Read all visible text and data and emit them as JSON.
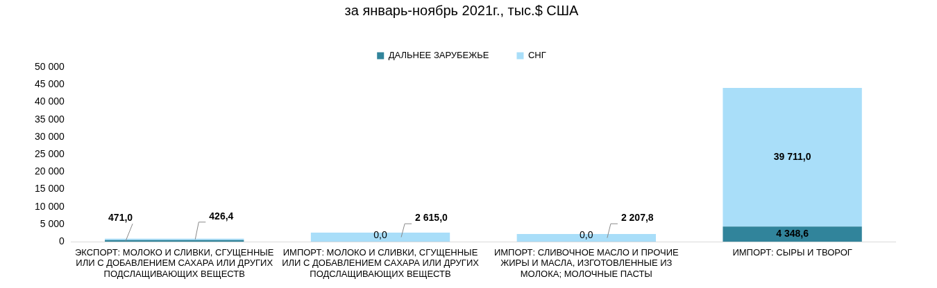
{
  "chart_data": {
    "type": "bar",
    "title": "за январь-ноябрь 2021г., тыс.$ США",
    "categories": [
      "ЭКСПОРТ: МОЛОКО И СЛИВКИ, СГУЩЕННЫЕ ИЛИ С ДОБАВЛЕНИЕМ САХАРА ИЛИ ДРУГИХ ПОДСЛАЩИВАЮЩИХ ВЕЩЕСТВ",
      "ИМПОРТ: МОЛОКО И СЛИВКИ, СГУЩЕННЫЕ ИЛИ С ДОБАВЛЕНИЕМ САХАРА ИЛИ ДРУГИХ ПОДСЛАЩИВАЮЩИХ ВЕЩЕСТВ",
      "ИМПОРТ: СЛИВОЧНОЕ МАСЛО И ПРОЧИЕ ЖИРЫ И МАСЛА, ИЗГОТОВЛЕННЫЕ ИЗ МОЛОКА; МОЛОЧНЫЕ ПАСТЫ",
      "ИМПОРТ: СЫРЫ И ТВОРОГ"
    ],
    "stacked": true,
    "series": [
      {
        "name": "ДАЛЬНЕЕ ЗАРУБЕЖЬЕ",
        "color": "#31849b",
        "values": [
          471.0,
          0.0,
          0.0,
          4348.6
        ],
        "value_labels": [
          "471,0",
          "0,0",
          "0,0",
          "4 348,6"
        ]
      },
      {
        "name": "СНГ",
        "color": "#a9def9",
        "values": [
          426.4,
          2615.0,
          2207.8,
          39711.0
        ],
        "value_labels": [
          "426,4",
          "2 615,0",
          "2 207,8",
          "39 711,0"
        ]
      }
    ],
    "ylim": [
      0,
      50000
    ],
    "yticks": [
      {
        "value": 0,
        "label": "0"
      },
      {
        "value": 5000,
        "label": "5 000"
      },
      {
        "value": 10000,
        "label": "10 000"
      },
      {
        "value": 15000,
        "label": "15 000"
      },
      {
        "value": 20000,
        "label": "20 000"
      },
      {
        "value": 25000,
        "label": "25 000"
      },
      {
        "value": 30000,
        "label": "30 000"
      },
      {
        "value": 35000,
        "label": "35 000"
      },
      {
        "value": 40000,
        "label": "40 000"
      },
      {
        "value": 45000,
        "label": "45 000"
      },
      {
        "value": 50000,
        "label": "50 000"
      }
    ],
    "grid": false,
    "legend": "top"
  }
}
